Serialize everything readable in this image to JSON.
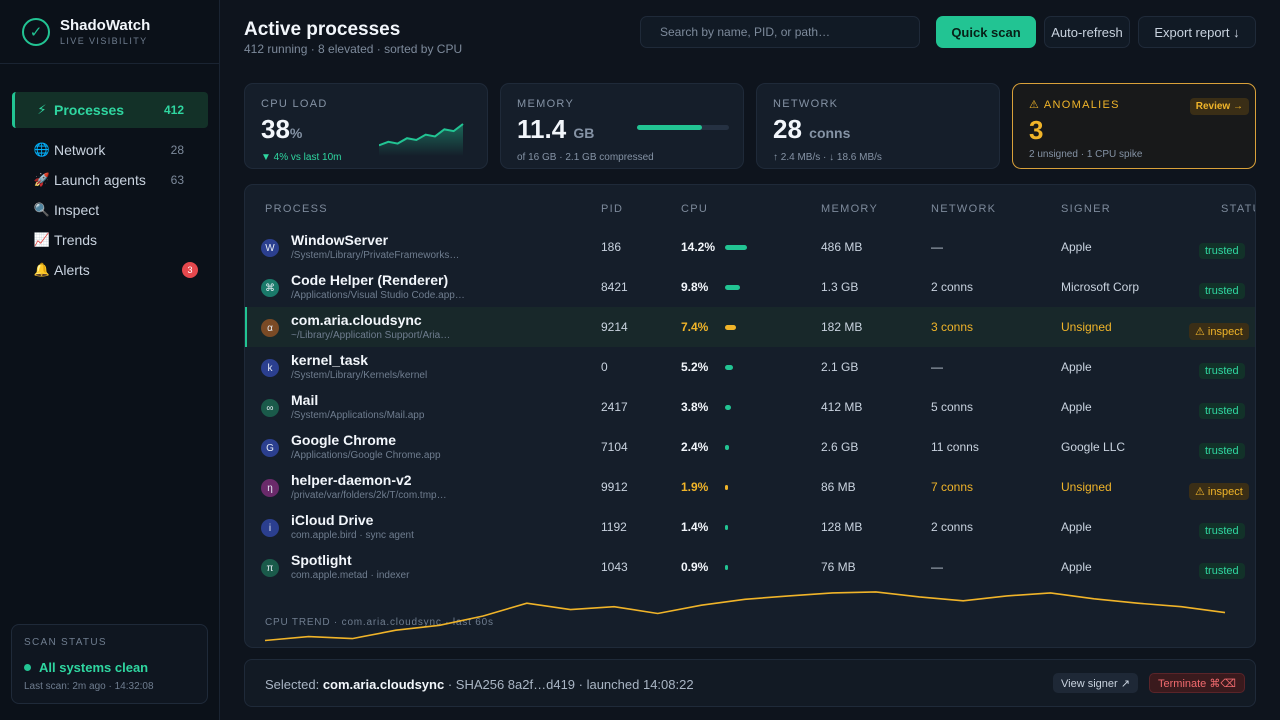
{
  "brand": {
    "name": "ShadoWatch",
    "tagline": "LIVE VISIBILITY"
  },
  "nav": [
    {
      "icon": "lightning-icon",
      "glyph": "⚡",
      "label": "Processes",
      "count": "412",
      "active": true
    },
    {
      "icon": "globe-icon",
      "glyph": "🌐",
      "label": "Network",
      "count": "28"
    },
    {
      "icon": "rocket-icon",
      "glyph": "🚀",
      "label": "Launch agents",
      "count": "63"
    },
    {
      "icon": "magnifier-icon",
      "glyph": "🔍",
      "label": "Inspect",
      "count": ""
    },
    {
      "icon": "chart-icon",
      "glyph": "📈",
      "label": "Trends",
      "count": ""
    },
    {
      "icon": "bell-icon",
      "glyph": "🔔",
      "label": "Alerts",
      "badge": "3"
    }
  ],
  "scan": {
    "title": "SCAN STATUS",
    "state": "All systems clean",
    "last": "Last scan: 2m ago · 14:32:08"
  },
  "header": {
    "title": "Active processes",
    "subtitle": "412 running · 8 elevated · sorted by CPU",
    "search_placeholder": "Search by name, PID, or path…",
    "quick_scan": "Quick scan",
    "auto_refresh": "Auto-refresh",
    "export": "Export report ↓"
  },
  "stats": {
    "cpu": {
      "label": "CPU LOAD",
      "value": "38",
      "unit": "%",
      "foot": "▼ 4% vs last 10m",
      "spark": [
        3,
        4,
        3.5,
        5,
        4.5,
        6,
        5.5,
        7.5,
        7,
        9
      ]
    },
    "memory": {
      "label": "MEMORY",
      "value": "11.4",
      "unit": "GB",
      "foot": "of 16 GB · 2.1 GB compressed",
      "used_fraction": 0.71
    },
    "network": {
      "label": "NETWORK",
      "value": "28",
      "unit": "conns",
      "foot": "↑ 2.4 MB/s · ↓ 18.6 MB/s"
    },
    "anomalies": {
      "label": "⚠ ANOMALIES",
      "value": "3",
      "foot": "2 unsigned · 1 CPU spike",
      "review": "Review →"
    }
  },
  "table": {
    "headers": {
      "process": "PROCESS",
      "pid": "PID",
      "cpu": "CPU",
      "memory": "MEMORY",
      "network": "NETWORK",
      "signer": "SIGNER",
      "status": "STATUS"
    },
    "rows": [
      {
        "glyph": "W",
        "icon_color": "#2b3f8f",
        "name": "WindowServer",
        "path": "/System/Library/PrivateFrameworks…",
        "pid": "186",
        "cpu": "14.2%",
        "cpu_value": 14.2,
        "memory": "486 MB",
        "network": "—",
        "signer": "Apple",
        "status": "trusted"
      },
      {
        "glyph": "⌘",
        "icon_color": "#1a7a6a",
        "name": "Code Helper (Renderer)",
        "path": "/Applications/Visual Studio Code.app…",
        "pid": "8421",
        "cpu": "9.8%",
        "cpu_value": 9.8,
        "memory": "1.3 GB",
        "network": "2 conns",
        "signer": "Microsoft Corp",
        "status": "trusted"
      },
      {
        "glyph": "α",
        "icon_color": "#7a4a25",
        "name": "com.aria.cloudsync",
        "path": "~/Library/Application Support/Aria…",
        "pid": "9214",
        "cpu": "7.4%",
        "cpu_value": 7.4,
        "memory": "182 MB",
        "network": "3 conns",
        "signer": "Unsigned",
        "status": "⚠ inspect",
        "flag": true,
        "selected": true
      },
      {
        "glyph": "k",
        "icon_color": "#2b3f8f",
        "name": "kernel_task",
        "path": "/System/Library/Kernels/kernel",
        "pid": "0",
        "cpu": "5.2%",
        "cpu_value": 5.2,
        "memory": "2.1 GB",
        "network": "—",
        "signer": "Apple",
        "status": "trusted"
      },
      {
        "glyph": "∞",
        "icon_color": "#1a5a4a",
        "name": "Mail",
        "path": "/System/Applications/Mail.app",
        "pid": "2417",
        "cpu": "3.8%",
        "cpu_value": 3.8,
        "memory": "412 MB",
        "network": "5 conns",
        "signer": "Apple",
        "status": "trusted"
      },
      {
        "glyph": "G",
        "icon_color": "#2b3f8f",
        "name": "Google Chrome",
        "path": "/Applications/Google Chrome.app",
        "pid": "7104",
        "cpu": "2.4%",
        "cpu_value": 2.4,
        "memory": "2.6 GB",
        "network": "11 conns",
        "signer": "Google LLC",
        "status": "trusted"
      },
      {
        "glyph": "η",
        "icon_color": "#6a2a6a",
        "name": "helper-daemon-v2",
        "path": "/private/var/folders/2k/T/com.tmp…",
        "pid": "9912",
        "cpu": "1.9%",
        "cpu_value": 1.9,
        "memory": "86 MB",
        "network": "7 conns",
        "signer": "Unsigned",
        "status": "⚠ inspect",
        "flag": true
      },
      {
        "glyph": "i",
        "icon_color": "#2b3f8f",
        "name": "iCloud Drive",
        "path": "com.apple.bird · sync agent",
        "pid": "1192",
        "cpu": "1.4%",
        "cpu_value": 1.4,
        "memory": "128 MB",
        "network": "2 conns",
        "signer": "Apple",
        "status": "trusted"
      },
      {
        "glyph": "π",
        "icon_color": "#1a5a4a",
        "name": "Spotlight",
        "path": "com.apple.metad · indexer",
        "pid": "1043",
        "cpu": "0.9%",
        "cpu_value": 0.9,
        "memory": "76 MB",
        "network": "—",
        "signer": "Apple",
        "status": "trusted"
      }
    ]
  },
  "trend": {
    "label": "CPU TREND · com.aria.cloudsync · last 60s",
    "values": [
      0.5,
      1.3,
      0.9,
      2.6,
      3.6,
      5.5,
      8.1,
      6.8,
      7.4,
      6.0,
      7.7,
      8.9,
      9.6,
      10.2,
      10.4,
      9.4,
      8.6,
      9.6,
      10.2,
      9.0,
      8.1,
      7.4,
      6.2
    ]
  },
  "selection": {
    "prefix": "Selected: ",
    "name": "com.aria.cloudsync",
    "details": " · SHA256 8a2f…d419 · launched 14:08:22",
    "view_signer": "View signer ↗",
    "terminate": "Terminate ⌘⌫"
  },
  "colors": {
    "accent": "#22c493",
    "warn": "#f0b429",
    "danger": "#e5484d"
  }
}
